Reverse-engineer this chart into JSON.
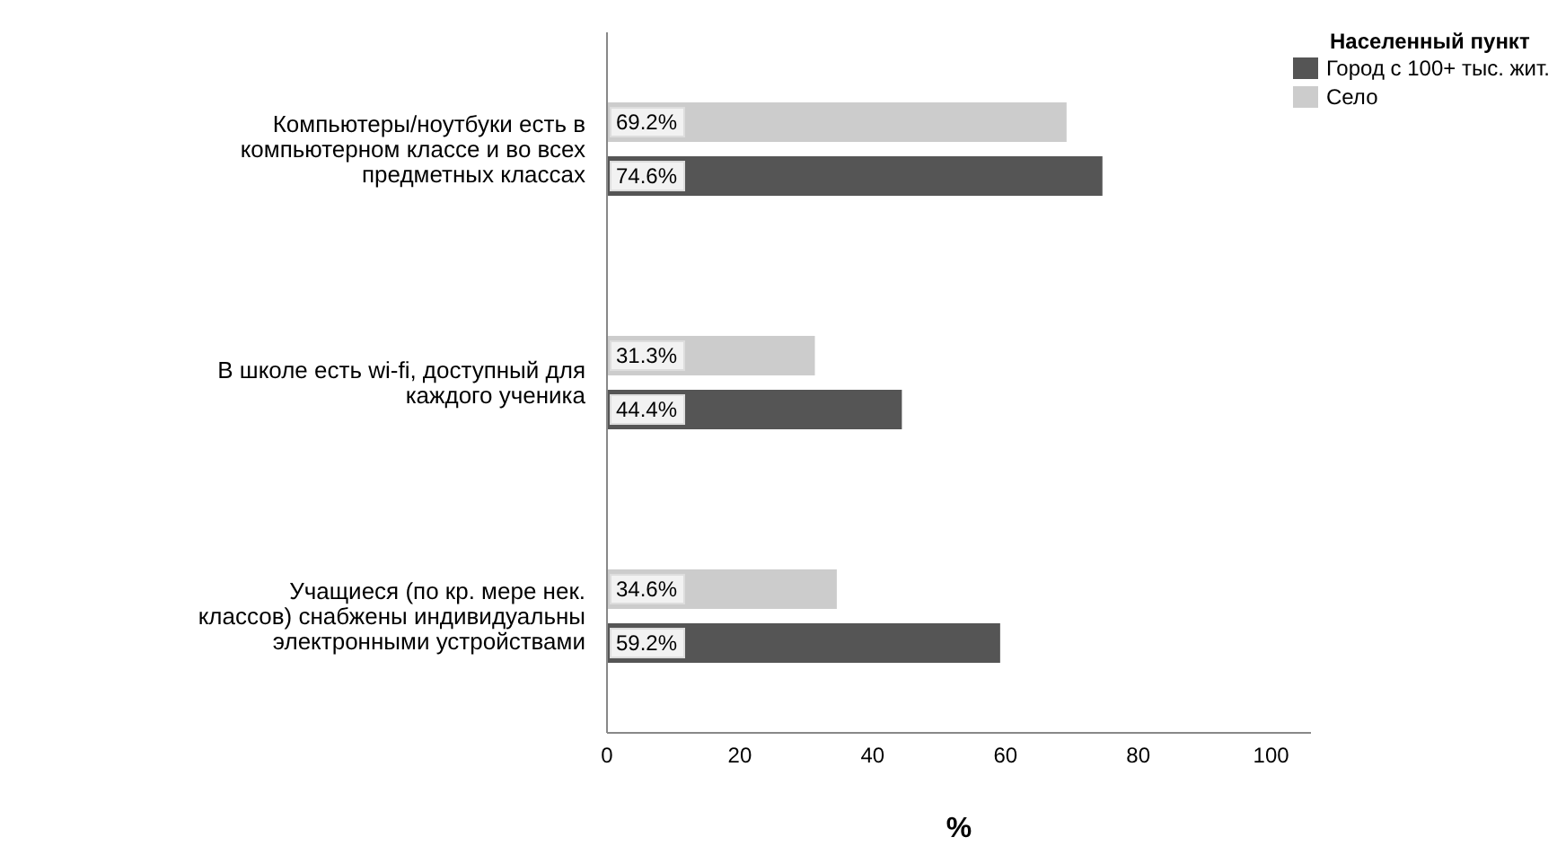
{
  "chart_data": {
    "type": "bar",
    "orientation": "horizontal",
    "xlabel": "%",
    "legend_title": "Населенный пункт",
    "legend": "top right",
    "grid": false,
    "categories": [
      "Компьютеры/ноутбуки есть в компьютерном классе и во всех предметных классах",
      "В школе есть wi-fi, доступный для каждого ученика",
      "Учащиеся (по кр. мере нек. классов) снабжены индивидуальны электронными устройствами"
    ],
    "series": [
      {
        "name": "Город с 100+ тыс. жит.",
        "color": "#555555",
        "values": [
          74.6,
          44.4,
          59.2
        ],
        "value_labels": [
          "74.6%",
          "44.4%",
          "59.2%"
        ]
      },
      {
        "name": "Село",
        "color": "#cccccc",
        "values": [
          69.2,
          31.3,
          34.6
        ],
        "value_labels": [
          "69.2%",
          "31.3%",
          "34.6%"
        ]
      }
    ],
    "xlim": [
      0,
      106
    ],
    "xticks": [
      0,
      20,
      40,
      60,
      80,
      100
    ]
  }
}
